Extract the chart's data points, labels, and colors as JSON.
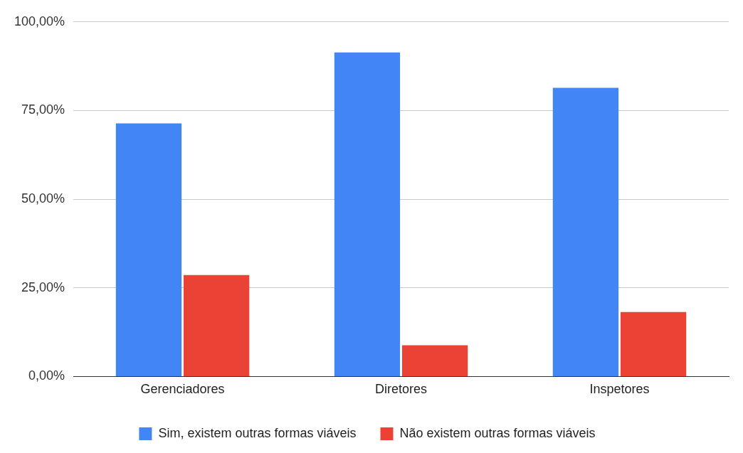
{
  "chart_data": {
    "type": "bar",
    "categories": [
      "Gerenciadores",
      "Diretores",
      "Inspetores"
    ],
    "series": [
      {
        "name": "Sim, existem outras formas viáveis",
        "color": "#4285f4",
        "values": [
          71.4,
          91.4,
          81.4
        ]
      },
      {
        "name": "Não existem outras formas viáveis",
        "color": "#ea4335",
        "values": [
          28.6,
          8.8,
          18.2
        ]
      }
    ],
    "ylim": [
      0,
      100
    ],
    "yticks": [
      {
        "value": 0,
        "label": "0,00%"
      },
      {
        "value": 25,
        "label": "25,00%"
      },
      {
        "value": 50,
        "label": "50,00%"
      },
      {
        "value": 75,
        "label": "75,00%"
      },
      {
        "value": 100,
        "label": "100,00%"
      }
    ],
    "grid": "y",
    "legend": "bottom"
  }
}
